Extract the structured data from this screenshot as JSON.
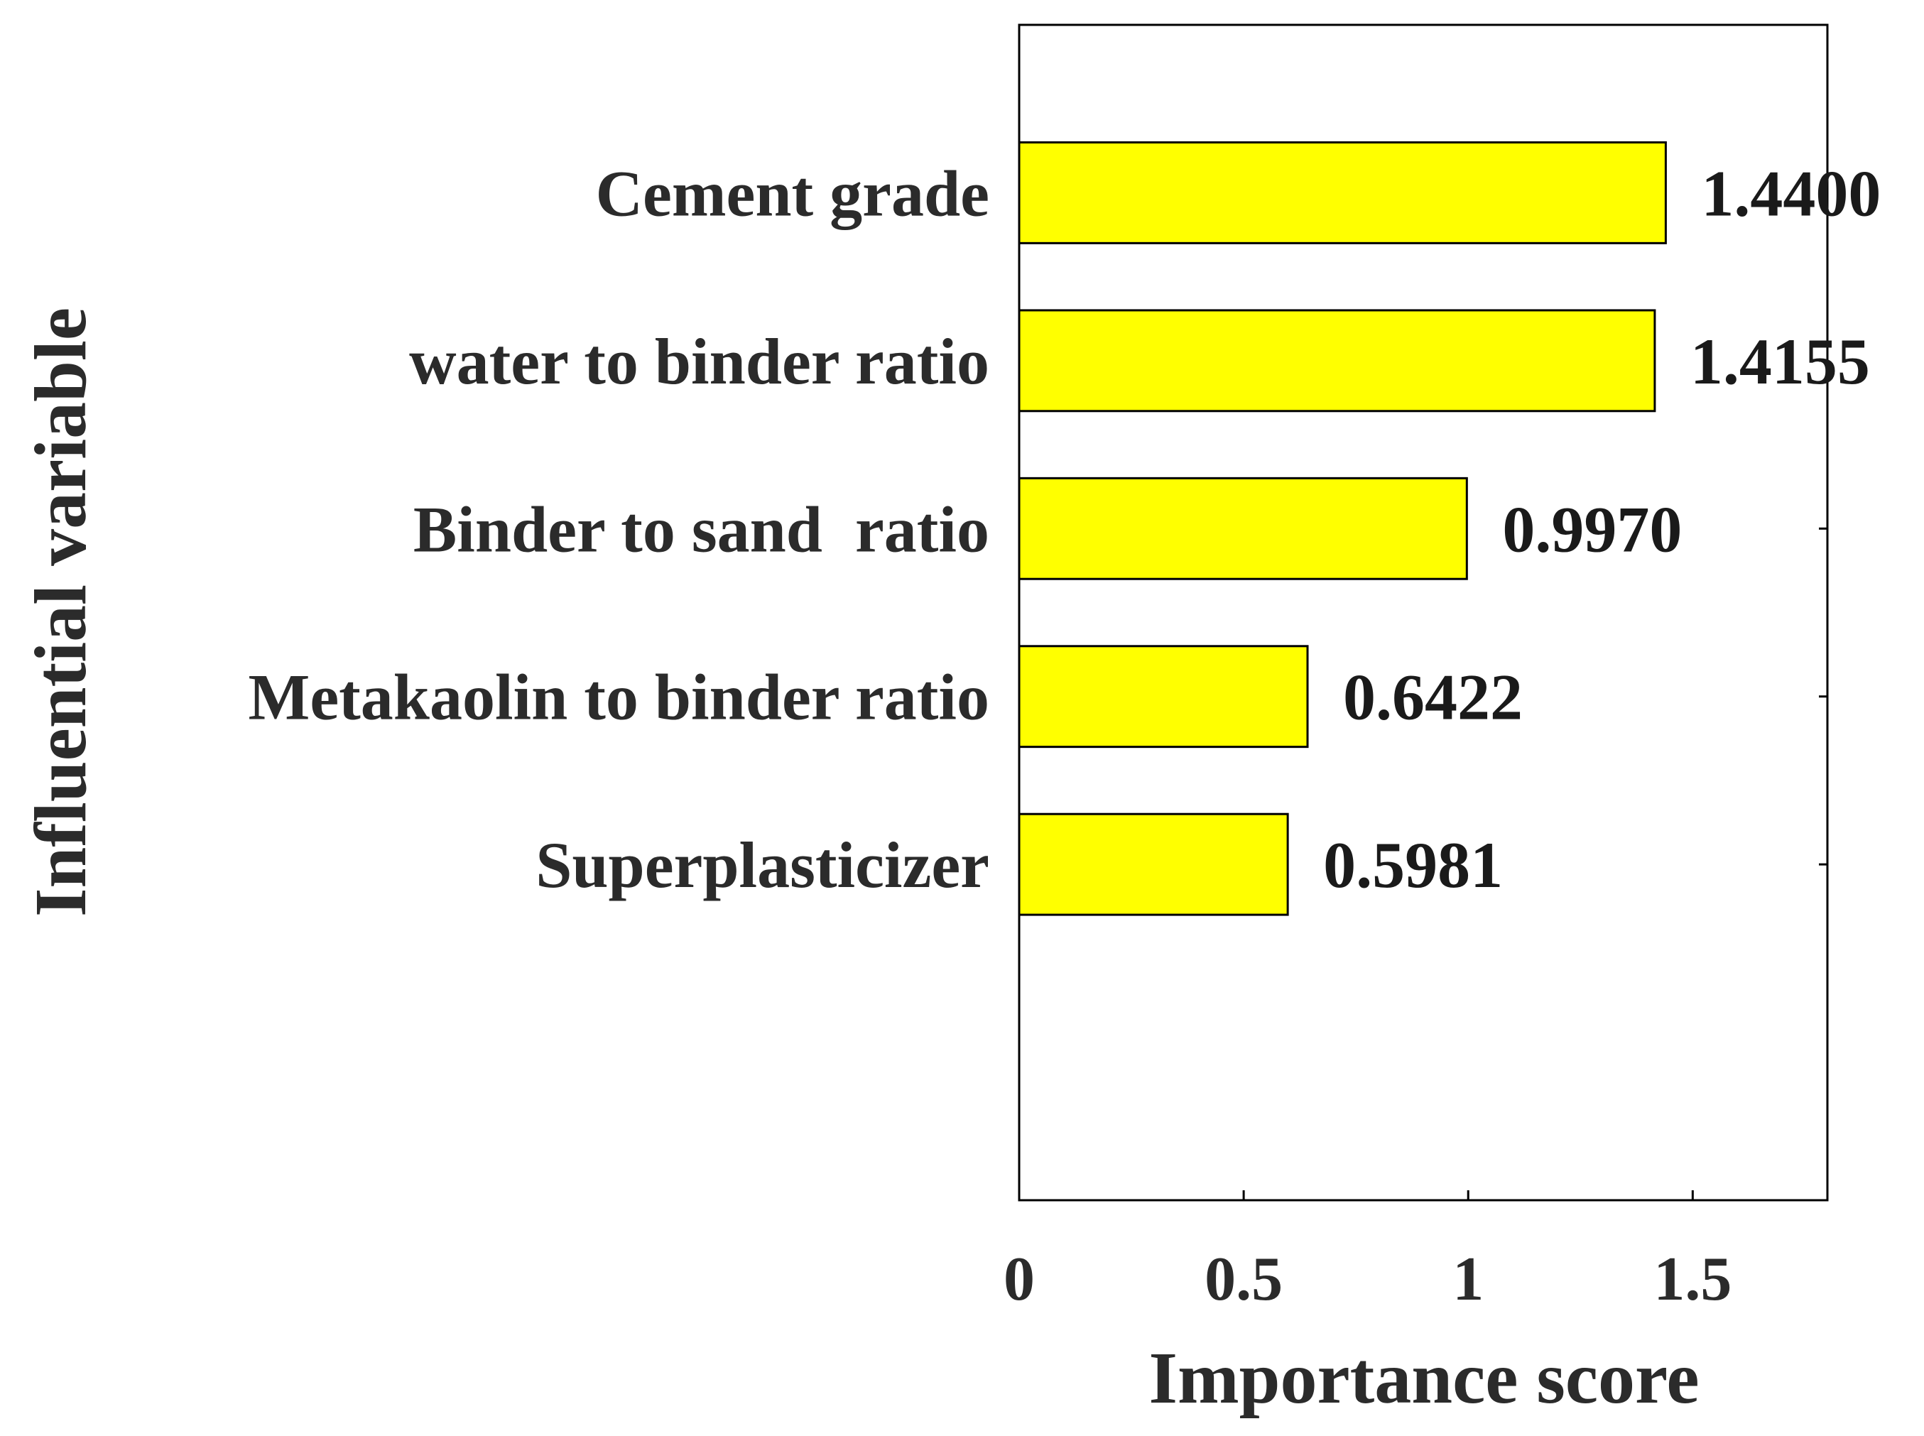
{
  "chart_data": {
    "type": "bar",
    "orientation": "horizontal",
    "categories": [
      "Cement grade",
      "water to binder ratio",
      "Binder to sand  ratio",
      "Metakaolin to binder ratio",
      "Superplasticizer"
    ],
    "values": [
      1.44,
      1.4155,
      0.997,
      0.6422,
      0.5981
    ],
    "value_labels": [
      "1.4400",
      "1.4155",
      "0.9970",
      "0.6422",
      "0.5981"
    ],
    "xlabel": "Importance score",
    "ylabel": "Influential variable",
    "xlim": [
      0,
      1.8
    ],
    "xticks": [
      0,
      0.5,
      1,
      1.5
    ],
    "xtick_labels": [
      "0",
      "0.5",
      "1",
      "1.5"
    ],
    "grid": false,
    "bar_color": "#ffff00",
    "edge_color": "#000000"
  }
}
